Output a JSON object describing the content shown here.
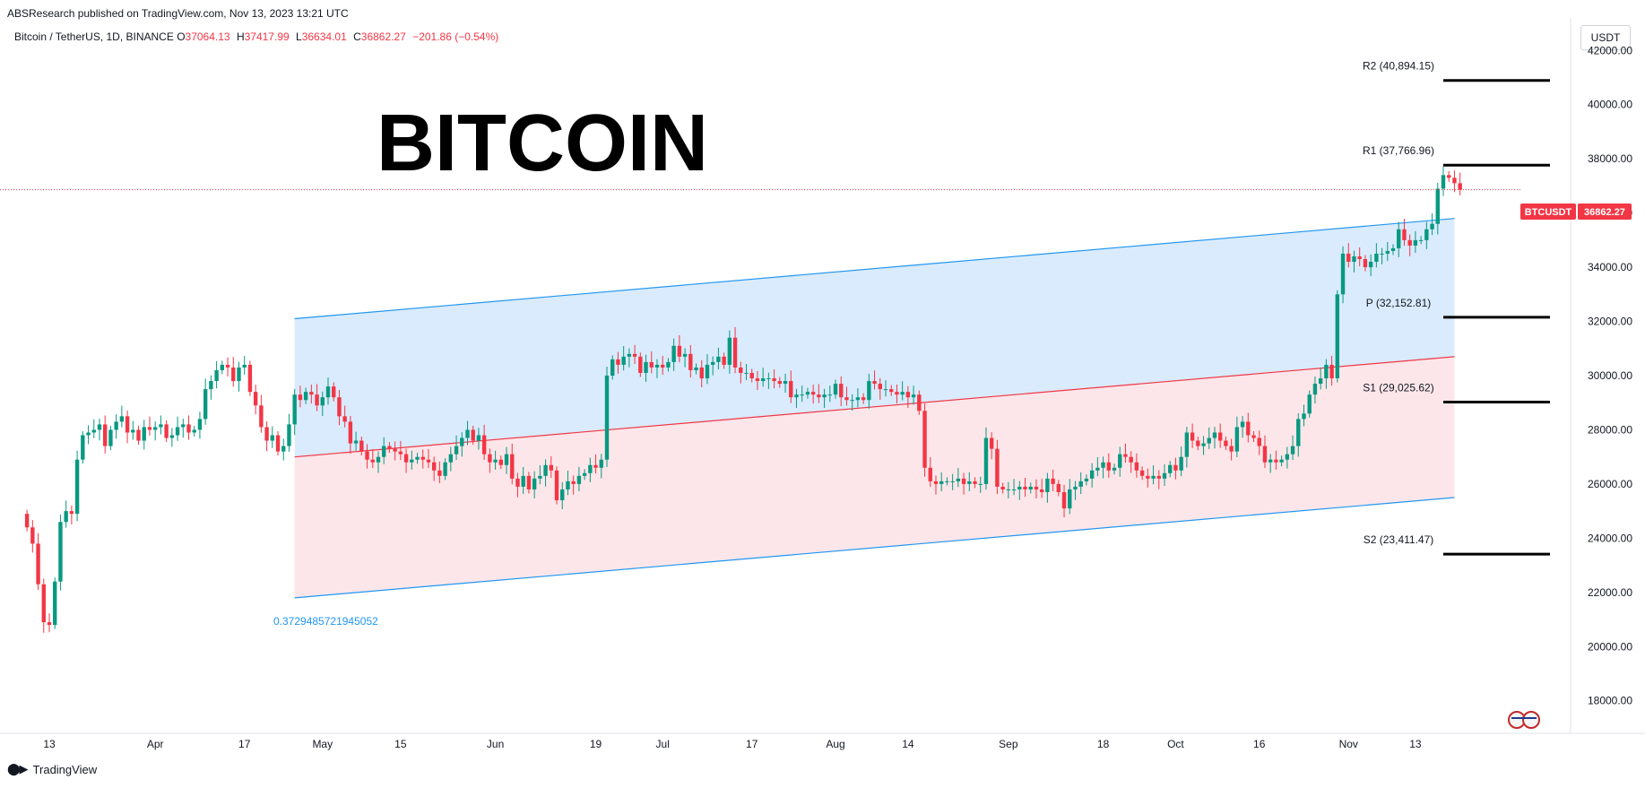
{
  "header": {
    "publisher_line": "ABSResearch published on TradingView.com, Nov 13, 2023 13:21 UTC",
    "symbol": "Bitcoin / TetherUS, 1D, BINANCE",
    "open_label": "O",
    "open": "37064.13",
    "high_label": "H",
    "high": "37417.99",
    "low_label": "L",
    "low": "36634.01",
    "close_label": "C",
    "close": "36862.27",
    "change": "−201.86 (−0.54%)"
  },
  "unit_button": "USDT",
  "footer": {
    "brand": "TradingView"
  },
  "colors": {
    "up": "#089981",
    "down": "#f23645",
    "upper_band": "#2196f3",
    "mid_line": "#f23645",
    "upper_fill": "#cfe6fb",
    "lower_fill": "#fde0e3"
  },
  "chart_data": {
    "type": "candlestick",
    "title": "BITCOIN",
    "ylim": [
      16800,
      43200
    ],
    "y_ticks": [
      "18000.00",
      "20000.00",
      "22000.00",
      "24000.00",
      "26000.00",
      "28000.00",
      "30000.00",
      "32000.00",
      "34000.00",
      "36000.00",
      "38000.00",
      "40000.00",
      "42000.00"
    ],
    "x_ticks": [
      "13",
      "Apr",
      "17",
      "May",
      "15",
      "Jun",
      "19",
      "Jul",
      "17",
      "Aug",
      "14",
      "Sep",
      "18",
      "Oct",
      "16",
      "Nov",
      "13"
    ],
    "price_label": {
      "symbol": "BTCUSDT",
      "value": "36862.27"
    },
    "channel_annotation": "0.3729485721945052",
    "pivot_levels": [
      {
        "label": "R2 (40,894.15)",
        "value": 40894.15
      },
      {
        "label": "R1 (37,766.96)",
        "value": 37766.96
      },
      {
        "label": "P (32,152.81)",
        "value": 32152.81
      },
      {
        "label": "S1 (29,025.62)",
        "value": 29025.62
      },
      {
        "label": "S2 (23,411.47)",
        "value": 23411.47
      }
    ],
    "channel": {
      "start_date": "2023-04-26",
      "end_date": "2023-11-20",
      "upper": [
        32100,
        35800
      ],
      "middle": [
        27000,
        30700
      ],
      "lower": [
        21800,
        25500
      ]
    },
    "closes_start_date": "2023-03-09",
    "closes": [
      24400,
      23800,
      22300,
      20900,
      20800,
      22400,
      24600,
      25000,
      24900,
      26900,
      27800,
      27900,
      28000,
      28200,
      27400,
      28000,
      28300,
      28500,
      27900,
      28000,
      27600,
      28100,
      28000,
      28100,
      28200,
      27700,
      27800,
      28100,
      28200,
      27900,
      28000,
      28400,
      29500,
      29800,
      30200,
      30400,
      30300,
      29800,
      30300,
      30400,
      29400,
      28900,
      28100,
      27600,
      27800,
      27200,
      27400,
      28200,
      29300,
      29100,
      29400,
      29300,
      28900,
      29200,
      29600,
      29200,
      28500,
      28300,
      27500,
      27600,
      27200,
      26900,
      26800,
      27000,
      27400,
      27300,
      27200,
      27100,
      26800,
      26900,
      27000,
      26900,
      26800,
      26500,
      26300,
      26800,
      27100,
      27400,
      27700,
      28000,
      27600,
      27800,
      27100,
      26800,
      26900,
      26700,
      27100,
      26200,
      25900,
      26300,
      25800,
      26200,
      26300,
      26700,
      26500,
      25400,
      25800,
      26100,
      26000,
      26300,
      26400,
      26700,
      26600,
      26900,
      30000,
      30600,
      30400,
      30700,
      30800,
      30700,
      30100,
      30500,
      30300,
      30400,
      30300,
      30500,
      31100,
      30700,
      30800,
      30200,
      30300,
      29900,
      30400,
      30500,
      30700,
      30400,
      31400,
      30300,
      30100,
      30100,
      29900,
      29800,
      29900,
      29900,
      29800,
      29700,
      29800,
      29200,
      29300,
      29300,
      29400,
      29300,
      29200,
      29300,
      29300,
      29700,
      29200,
      29100,
      29100,
      29200,
      29100,
      29800,
      29700,
      29500,
      29500,
      29400,
      29300,
      29400,
      29200,
      29300,
      28700,
      26600,
      26100,
      26000,
      26100,
      26100,
      26100,
      26200,
      26000,
      26100,
      26000,
      26000,
      27700,
      27300,
      25900,
      25800,
      25800,
      25800,
      25900,
      25800,
      25900,
      25800,
      25700,
      26200,
      26000,
      25700,
      25100,
      25800,
      25900,
      26100,
      26200,
      26500,
      26600,
      26800,
      26500,
      26600,
      27100,
      27000,
      26800,
      26500,
      26300,
      26200,
      26300,
      26200,
      26400,
      26700,
      26500,
      27000,
      27900,
      27600,
      27400,
      27500,
      27700,
      27900,
      27600,
      27400,
      27200,
      28100,
      28300,
      27800,
      27700,
      27400,
      26800,
      26900,
      26800,
      26900,
      27100,
      27400,
      28400,
      28600,
      29300,
      29700,
      29900,
      30400,
      29900,
      33000,
      34500,
      34200,
      34400,
      34300,
      34000,
      34200,
      34500,
      34500,
      34600,
      34700,
      35400,
      35000,
      34800,
      35000,
      35000,
      35400,
      35600,
      36900,
      37400,
      37300,
      37100,
      36862
    ]
  }
}
